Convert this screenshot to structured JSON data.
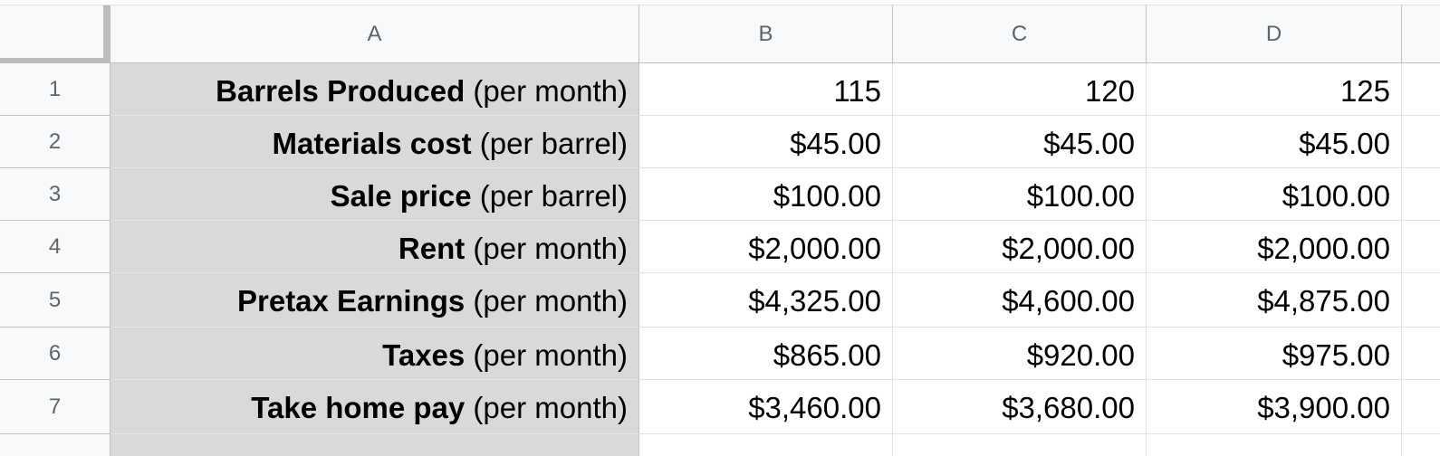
{
  "columns": [
    {
      "id": "A",
      "label": "A"
    },
    {
      "id": "B",
      "label": "B"
    },
    {
      "id": "C",
      "label": "C"
    },
    {
      "id": "D",
      "label": "D"
    }
  ],
  "rows": [
    {
      "num": "1",
      "label_bold": "Barrels Produced",
      "label_rest": " (per month)",
      "b": "115",
      "c": "120",
      "d": "125"
    },
    {
      "num": "2",
      "label_bold": "Materials cost",
      "label_rest": " (per barrel)",
      "b": "$45.00",
      "c": "$45.00",
      "d": "$45.00"
    },
    {
      "num": "3",
      "label_bold": "Sale price",
      "label_rest": " (per barrel)",
      "b": "$100.00",
      "c": "$100.00",
      "d": "$100.00"
    },
    {
      "num": "4",
      "label_bold": "Rent",
      "label_rest": " (per month)",
      "b": "$2,000.00",
      "c": "$2,000.00",
      "d": "$2,000.00"
    },
    {
      "num": "5",
      "label_bold": "Pretax Earnings",
      "label_rest": " (per month)",
      "b": "$4,325.00",
      "c": "$4,600.00",
      "d": "$4,875.00"
    },
    {
      "num": "6",
      "label_bold": "Taxes",
      "label_rest": " (per month)",
      "b": "$865.00",
      "c": "$920.00",
      "d": "$975.00"
    },
    {
      "num": "7",
      "label_bold": "Take home pay",
      "label_rest": " (per month)",
      "b": "$3,460.00",
      "c": "$3,680.00",
      "d": "$3,900.00"
    }
  ],
  "colors": {
    "header_bg": "#f8f9fa",
    "label_bg": "#d9d9d9",
    "header_text": "#5f6368"
  }
}
